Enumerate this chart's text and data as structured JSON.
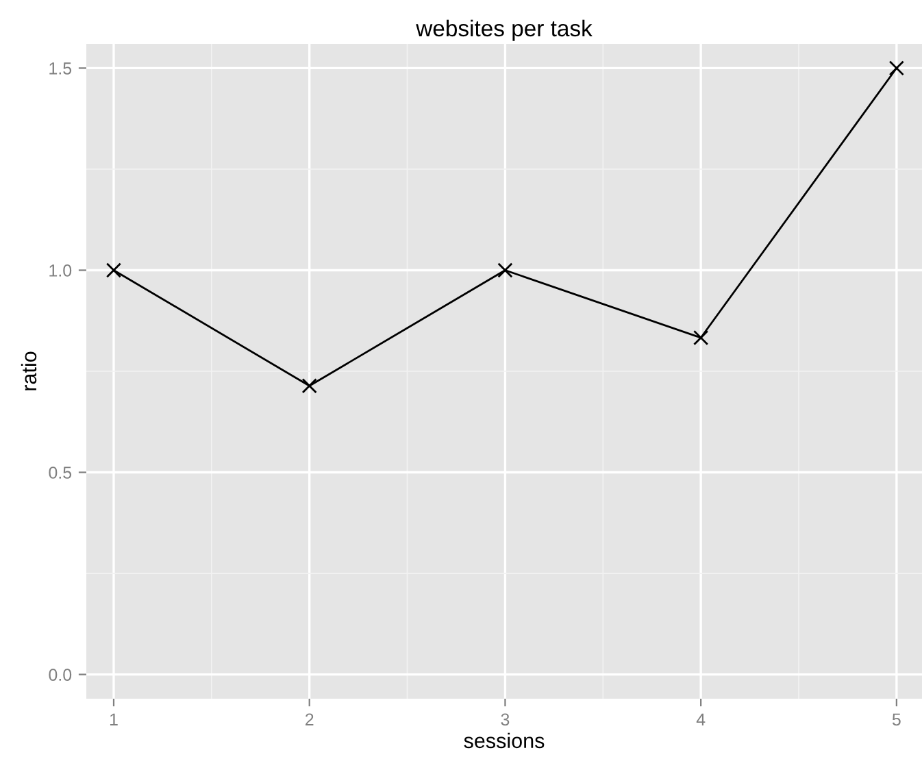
{
  "chart_data": {
    "type": "line",
    "title": "websites per task",
    "xlabel": "sessions",
    "ylabel": "ratio",
    "x": [
      1,
      2,
      3,
      4,
      5
    ],
    "series": [
      {
        "color": "#000000",
        "values": [
          1.0,
          0.714,
          1.0,
          0.833,
          1.5
        ]
      }
    ],
    "xlim": [
      0.86,
      5.13
    ],
    "ylim": [
      -0.06,
      1.56
    ],
    "xticks": [
      1,
      2,
      3,
      4,
      5
    ],
    "yticks": [
      {
        "value": 0,
        "label": "0.0"
      },
      {
        "value": 0.5,
        "label": "0.5"
      },
      {
        "value": 1,
        "label": "1.0"
      },
      {
        "value": 1.5,
        "label": "1.5"
      }
    ],
    "grid": true,
    "marker": "cross",
    "line_style": "solid"
  }
}
